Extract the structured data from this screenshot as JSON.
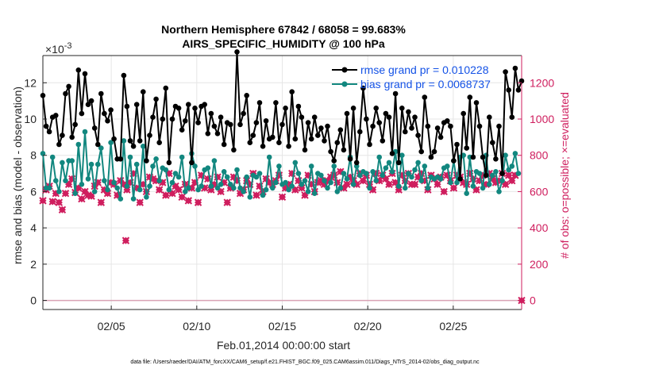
{
  "chart_data": {
    "type": "line",
    "title_line1": "Northern Hemisphere 67842 / 68058 = 99.683%",
    "title_line2": "AIRS_SPECIFIC_HUMIDITY @ 100 hPa",
    "xlabel": "Feb.01,2014 00:00:00 start",
    "ylabel_left": "rmse and bias (model - observation)",
    "ylabel_right": "# of obs: o=possible; ×=evaluated",
    "exponent_label": "×10",
    "exponent_power": "-3",
    "footer": "data file: /Users/raeder/DAI/ATM_forcXX/CAM6_setup/f.e21.FHIST_BGC.f09_025.CAM6assim.011/Diags_NTrS_2014-02/obs_diag_output.nc",
    "xlim": [
      1,
      29
    ],
    "ylim_left": [
      -0.5,
      13.5
    ],
    "ylim_right": [
      -50,
      1350
    ],
    "x_ticks": [
      5,
      10,
      15,
      20,
      25
    ],
    "x_tick_labels": [
      "02/05",
      "02/10",
      "02/15",
      "02/20",
      "02/25"
    ],
    "y_left_ticks": [
      0,
      2,
      4,
      6,
      8,
      10,
      12
    ],
    "y_left_tick_labels": [
      "0",
      "2",
      "4",
      "6",
      "8",
      "10",
      "12"
    ],
    "y_right_ticks": [
      0,
      200,
      400,
      600,
      800,
      1000,
      1200
    ],
    "y_right_tick_labels": [
      "0",
      "200",
      "400",
      "600",
      "800",
      "1000",
      "1200"
    ],
    "grid": true,
    "legend_position": "top-right",
    "colors": {
      "rmse": "#000000",
      "bias": "#12877f",
      "obs": "#cf1e5e",
      "grid": "#e6e6e6",
      "legend_text": "#1452e6"
    },
    "series": [
      {
        "name": "rmse grand pr = 0.010228",
        "axis": "left",
        "values": [
          11.3,
          9.6,
          9.3,
          10.1,
          10.2,
          8.6,
          9.1,
          11.4,
          11.8,
          9.0,
          9.7,
          12.7,
          10.3,
          12.5,
          10.8,
          11.0,
          9.5,
          8.6,
          11.4,
          10.3,
          9.9,
          10.5,
          8.9,
          7.8,
          7.8,
          12.4,
          10.7,
          8.8,
          8.5,
          10.8,
          8.8,
          11.5,
          7.7,
          9.1,
          10.1,
          11.1,
          8.7,
          10.0,
          11.7,
          7.6,
          10.0,
          10.7,
          10.6,
          9.4,
          9.9,
          10.8,
          7.6,
          10.6,
          9.8,
          10.7,
          10.8,
          9.2,
          10.3,
          9.6,
          9.2,
          10.1,
          8.6,
          9.8,
          9.7,
          8.3,
          13.7,
          9.7,
          10.3,
          11.3,
          8.7,
          9.1,
          9.8,
          10.9,
          8.5,
          9.9,
          8.9,
          9.0,
          10.9,
          8.7,
          9.7,
          10.6,
          8.5,
          11.5,
          8.9,
          10.7,
          10.1,
          8.3,
          9.8,
          8.9,
          10.1,
          9.1,
          9.5,
          8.8,
          9.6,
          8.2,
          7.7,
          8.7,
          9.4,
          8.3,
          10.3,
          7.8,
          10.6,
          7.6,
          9.3,
          11.7,
          10.0,
          8.6,
          9.6,
          10.6,
          9.8,
          8.8,
          10.3,
          10.1,
          8.1,
          11.4,
          7.6,
          10.6,
          9.3,
          10.4,
          9.5,
          10.1,
          9.1,
          8.2,
          11.2,
          9.6,
          7.9,
          8.2,
          9.5,
          9.0,
          9.8,
          9.9,
          9.6,
          7.7,
          8.6,
          6.7,
          10.3,
          8.4,
          11.2,
          7.9,
          10.9,
          9.6,
          7.9,
          6.9,
          10.1,
          8.7,
          7.8,
          9.6,
          7.0,
          12.6,
          11.6,
          10.1,
          12.8,
          11.6,
          12.1
        ]
      },
      {
        "name": "bias grand pr = 0.0068737",
        "axis": "left",
        "values": [
          8.1,
          6.2,
          6.2,
          7.9,
          6.6,
          6.0,
          7.6,
          6.6,
          7.7,
          7.7,
          5.9,
          8.6,
          6.4,
          9.3,
          6.7,
          7.5,
          6.0,
          7.5,
          8.4,
          6.6,
          6.1,
          8.7,
          6.5,
          6.2,
          5.6,
          8.8,
          6.3,
          7.9,
          5.6,
          7.5,
          6.1,
          8.5,
          5.7,
          6.3,
          7.4,
          7.8,
          6.6,
          7.3,
          7.2,
          6.1,
          6.5,
          7.0,
          6.8,
          7.9,
          6.0,
          6.2,
          8.1,
          7.4,
          6.1,
          6.3,
          7.2,
          7.3,
          6.3,
          7.7,
          6.2,
          6.4,
          7.1,
          6.8,
          6.4,
          6.2,
          7.2,
          6.2,
          6.0,
          6.8,
          5.7,
          6.9,
          6.8,
          7.0,
          5.8,
          6.1,
          7.9,
          6.2,
          6.5,
          7.4,
          6.4,
          6.5,
          6.1,
          6.3,
          7.6,
          7.0,
          6.4,
          6.6,
          6.0,
          7.4,
          5.9,
          7.0,
          6.9,
          6.6,
          6.2,
          6.5,
          7.4,
          6.0,
          6.2,
          7.0,
          6.7,
          7.9,
          6.4,
          7.4,
          6.9,
          7.1,
          7.0,
          6.2,
          7.1,
          6.6,
          7.9,
          6.9,
          7.3,
          7.6,
          7.1,
          8.2,
          6.3,
          8.0,
          6.2,
          7.0,
          6.8,
          7.2,
          7.6,
          6.6,
          7.4,
          6.2,
          6.8,
          6.7,
          6.8,
          6.7,
          7.3,
          7.4,
          6.5,
          7.7,
          6.5,
          7.9,
          8.0,
          5.9,
          7.9,
          6.3,
          7.1,
          7.0,
          6.2,
          8.0,
          6.4,
          6.9,
          7.1,
          6.0,
          6.6,
          8.0,
          7.2,
          7.4,
          8.1,
          7.0
        ]
      },
      {
        "name": "# of obs possible",
        "axis": "right",
        "values": [
          550,
          610,
          630,
          545,
          590,
          540,
          500,
          590,
          640,
          670,
          595,
          620,
          560,
          600,
          580,
          575,
          630,
          650,
          540,
          610,
          590,
          650,
          640,
          580,
          660,
          640,
          610,
          650,
          700,
          620,
          540,
          640,
          600,
          680,
          670,
          660,
          610,
          650,
          580,
          700,
          590,
          630,
          610,
          570,
          640,
          550,
          620,
          650,
          540,
          690,
          620,
          670,
          610,
          640,
          680,
          600,
          650,
          540,
          620,
          680,
          660,
          590,
          610,
          660,
          640,
          700,
          580,
          630,
          600,
          670,
          650,
          640,
          660,
          690,
          570,
          620,
          640,
          700,
          610,
          660,
          620,
          580,
          690,
          640,
          600,
          650,
          660,
          640,
          660,
          680,
          690,
          650,
          710,
          620,
          640,
          680,
          660,
          640,
          700,
          660,
          690,
          640,
          610,
          700,
          660,
          690,
          670,
          640,
          700,
          650,
          610,
          690,
          660,
          700,
          640,
          640,
          680,
          700,
          660,
          610,
          690,
          670,
          640,
          680,
          600,
          690,
          660,
          620,
          690,
          680,
          650,
          640,
          700,
          670,
          610,
          660,
          690,
          640,
          700,
          670,
          650,
          660,
          700,
          640,
          690,
          660,
          690
        ]
      },
      {
        "name": "# of obs evaluated",
        "axis": "right",
        "values": [
          550,
          610,
          630,
          545,
          590,
          540,
          500,
          590,
          640,
          670,
          595,
          620,
          560,
          600,
          580,
          575,
          630,
          650,
          540,
          610,
          590,
          650,
          640,
          580,
          660,
          640,
          610,
          650,
          700,
          620,
          540,
          640,
          600,
          680,
          670,
          660,
          610,
          650,
          580,
          700,
          590,
          630,
          610,
          570,
          640,
          550,
          620,
          650,
          540,
          690,
          620,
          670,
          610,
          640,
          680,
          600,
          650,
          540,
          620,
          680,
          660,
          590,
          610,
          660,
          640,
          700,
          580,
          630,
          600,
          670,
          650,
          640,
          660,
          690,
          570,
          620,
          640,
          700,
          610,
          660,
          620,
          580,
          690,
          640,
          600,
          650,
          660,
          640,
          660,
          680,
          690,
          650,
          710,
          620,
          640,
          680,
          660,
          640,
          700,
          660,
          690,
          640,
          610,
          700,
          660,
          690,
          670,
          640,
          700,
          650,
          610,
          690,
          660,
          700,
          640,
          640,
          680,
          700,
          660,
          610,
          690,
          670,
          640,
          680,
          600,
          690,
          660,
          620,
          690,
          680,
          650,
          640,
          700,
          670,
          610,
          660,
          690,
          640,
          700,
          670,
          650,
          660,
          700,
          640,
          690,
          660,
          690
        ]
      }
    ],
    "outlier_obs": {
      "x": 5.85,
      "y": 330
    },
    "end_obs": {
      "x": 29.0,
      "y": 0
    }
  }
}
